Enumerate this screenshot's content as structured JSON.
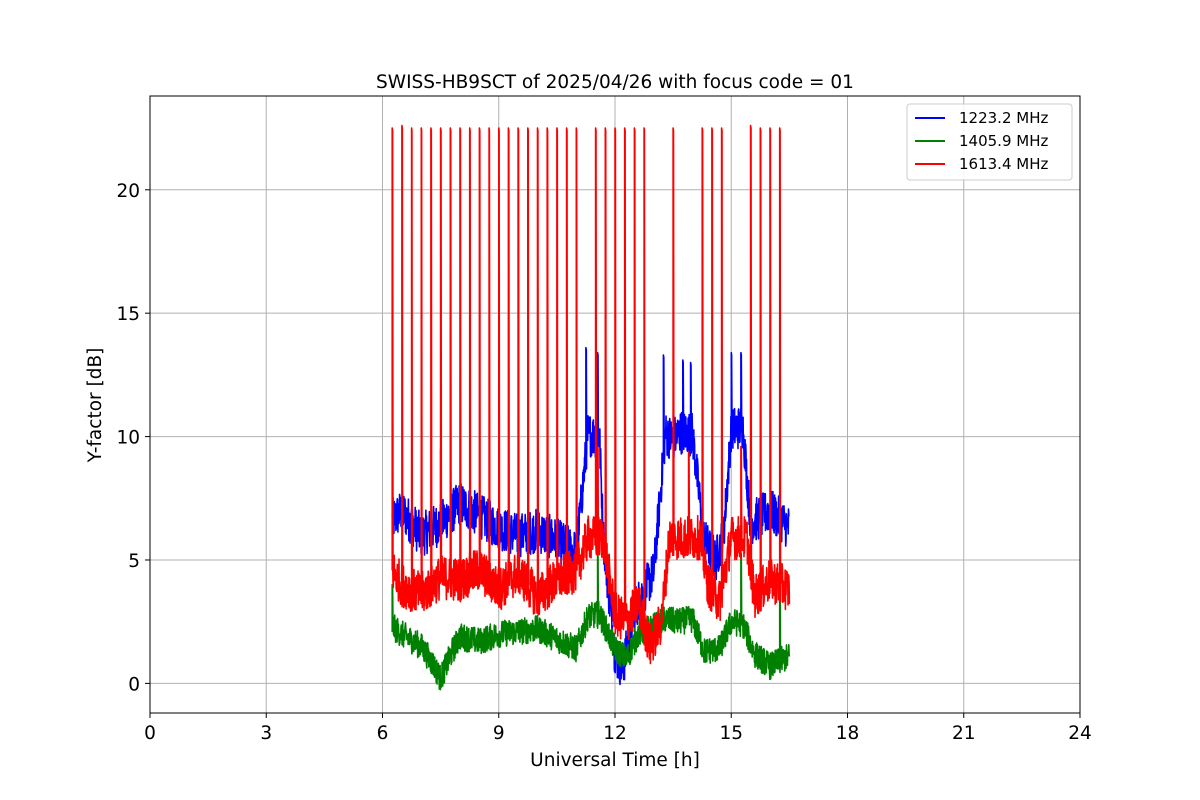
{
  "chart_data": {
    "type": "line",
    "title": "SWISS-HB9SCT of 2025/04/26 with focus code = 01",
    "xlabel": "Universal Time [h]",
    "ylabel": "Y-factor [dB]",
    "xlim": [
      0,
      24
    ],
    "ylim": [
      -1.2,
      23.8
    ],
    "xticks": [
      "0",
      "3",
      "6",
      "9",
      "12",
      "15",
      "18",
      "21",
      "24"
    ],
    "yticks": [
      "0",
      "5",
      "10",
      "15",
      "20"
    ],
    "grid": true,
    "legend_position": "top-right",
    "series": [
      {
        "name": "1223.2 MHz",
        "color": "#0000ff",
        "baseline": [
          [
            6.25,
            6.6
          ],
          [
            6.5,
            7.0
          ],
          [
            7.0,
            6.0
          ],
          [
            7.5,
            6.5
          ],
          [
            8.0,
            7.3
          ],
          [
            8.5,
            6.8
          ],
          [
            9.0,
            6.3
          ],
          [
            9.5,
            6.0
          ],
          [
            10.0,
            6.2
          ],
          [
            10.5,
            5.8
          ],
          [
            11.0,
            5.3
          ],
          [
            11.3,
            10.1
          ],
          [
            11.6,
            10.0
          ],
          [
            11.7,
            5.9
          ],
          [
            12.0,
            1.2
          ],
          [
            12.2,
            0.6
          ],
          [
            12.5,
            3.0
          ],
          [
            13.0,
            4.5
          ],
          [
            13.3,
            10.1
          ],
          [
            13.5,
            9.9
          ],
          [
            13.7,
            10.2
          ],
          [
            14.0,
            10.1
          ],
          [
            14.3,
            5.8
          ],
          [
            14.6,
            5.0
          ],
          [
            14.8,
            6.0
          ],
          [
            15.0,
            10.3
          ],
          [
            15.3,
            10.4
          ],
          [
            15.5,
            6.5
          ],
          [
            16.0,
            7.0
          ],
          [
            16.5,
            6.3
          ]
        ],
        "spikes": [
          [
            7.5,
            9.5
          ],
          [
            11.25,
            13.6
          ],
          [
            11.55,
            13.4
          ],
          [
            13.25,
            13.3
          ],
          [
            13.75,
            13.1
          ],
          [
            13.95,
            13.0
          ],
          [
            15.0,
            13.4
          ],
          [
            15.25,
            13.4
          ]
        ]
      },
      {
        "name": "1405.9 MHz",
        "color": "#008000",
        "baseline": [
          [
            6.25,
            2.3
          ],
          [
            6.5,
            2.0
          ],
          [
            7.0,
            1.5
          ],
          [
            7.3,
            0.8
          ],
          [
            7.5,
            0.2
          ],
          [
            7.8,
            1.3
          ],
          [
            8.0,
            1.9
          ],
          [
            8.5,
            1.7
          ],
          [
            9.0,
            2.0
          ],
          [
            9.5,
            2.1
          ],
          [
            10.0,
            2.2
          ],
          [
            10.5,
            1.8
          ],
          [
            11.0,
            1.4
          ],
          [
            11.3,
            2.7
          ],
          [
            11.6,
            2.8
          ],
          [
            12.0,
            1.4
          ],
          [
            12.3,
            1.0
          ],
          [
            12.6,
            2.0
          ],
          [
            13.0,
            2.3
          ],
          [
            13.3,
            2.6
          ],
          [
            13.6,
            2.5
          ],
          [
            14.0,
            2.6
          ],
          [
            14.3,
            1.3
          ],
          [
            14.7,
            1.4
          ],
          [
            15.0,
            2.5
          ],
          [
            15.3,
            2.4
          ],
          [
            15.6,
            1.2
          ],
          [
            16.0,
            0.7
          ],
          [
            16.5,
            1.1
          ]
        ],
        "spikes": [
          [
            6.25,
            4.0
          ],
          [
            11.55,
            5.5
          ],
          [
            15.25,
            5.3
          ],
          [
            16.25,
            4.5
          ]
        ]
      },
      {
        "name": "1613.4 MHz",
        "color": "#ff0000",
        "baseline": [
          [
            6.25,
            4.6
          ],
          [
            6.5,
            4.0
          ],
          [
            7.0,
            3.6
          ],
          [
            7.5,
            4.3
          ],
          [
            8.0,
            4.2
          ],
          [
            8.5,
            4.6
          ],
          [
            9.0,
            3.8
          ],
          [
            9.5,
            4.5
          ],
          [
            10.0,
            3.5
          ],
          [
            10.5,
            4.2
          ],
          [
            11.0,
            4.6
          ],
          [
            11.3,
            5.9
          ],
          [
            11.7,
            5.9
          ],
          [
            12.0,
            2.8
          ],
          [
            12.3,
            2.5
          ],
          [
            12.6,
            3.3
          ],
          [
            12.9,
            1.5
          ],
          [
            13.2,
            2.5
          ],
          [
            13.4,
            5.9
          ],
          [
            13.8,
            5.9
          ],
          [
            14.2,
            5.9
          ],
          [
            14.4,
            4.0
          ],
          [
            14.7,
            3.3
          ],
          [
            15.0,
            5.9
          ],
          [
            15.4,
            5.9
          ],
          [
            15.6,
            3.5
          ],
          [
            16.0,
            4.2
          ],
          [
            16.5,
            3.8
          ]
        ],
        "spikes": [
          [
            6.25,
            22.5
          ],
          [
            6.5,
            22.6
          ],
          [
            6.75,
            22.5
          ],
          [
            7.0,
            22.5
          ],
          [
            7.25,
            22.5
          ],
          [
            7.5,
            22.5
          ],
          [
            7.75,
            22.5
          ],
          [
            8.0,
            22.5
          ],
          [
            8.25,
            22.5
          ],
          [
            8.5,
            22.5
          ],
          [
            8.75,
            22.5
          ],
          [
            9.0,
            22.5
          ],
          [
            9.25,
            22.5
          ],
          [
            9.5,
            22.5
          ],
          [
            9.75,
            22.5
          ],
          [
            10.0,
            22.5
          ],
          [
            10.25,
            22.5
          ],
          [
            10.5,
            22.5
          ],
          [
            10.75,
            22.5
          ],
          [
            11.0,
            22.5
          ],
          [
            11.5,
            22.5
          ],
          [
            11.75,
            22.5
          ],
          [
            12.0,
            22.5
          ],
          [
            12.25,
            22.5
          ],
          [
            12.5,
            22.5
          ],
          [
            12.75,
            22.5
          ],
          [
            13.5,
            22.5
          ],
          [
            14.25,
            22.5
          ],
          [
            14.5,
            22.5
          ],
          [
            14.75,
            22.5
          ],
          [
            15.5,
            22.6
          ],
          [
            15.75,
            22.5
          ],
          [
            16.0,
            22.5
          ],
          [
            16.25,
            22.5
          ]
        ],
        "minor_spikes": [
          [
            11.55,
            9.6
          ],
          [
            13.9,
            9.4
          ],
          [
            15.25,
            9.6
          ]
        ]
      }
    ]
  }
}
